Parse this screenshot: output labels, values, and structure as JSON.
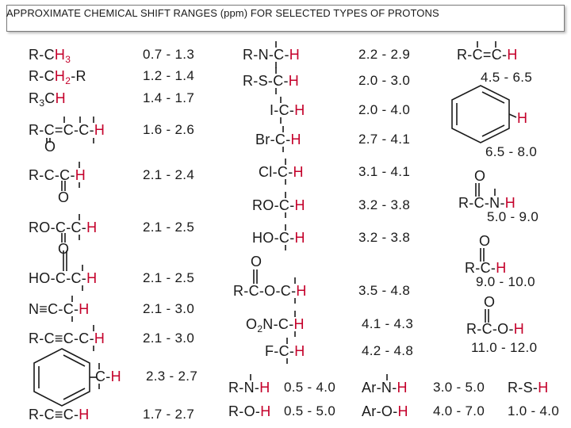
{
  "title": "APPROXIMATE CHEMICAL SHIFT RANGES (ppm) FOR SELECTED TYPES OF PROTONS",
  "colors": {
    "proton": "#c4002a",
    "text": "#1a1a1a",
    "frame": "#7a7a7a"
  },
  "col1": [
    {
      "pre": "R-C",
      "h": "H",
      "sub": "3",
      "post": "",
      "range": "0.7 - 1.3"
    },
    {
      "pre": "R-C",
      "h": "H",
      "sub": "2",
      "post": "-R",
      "range": "1.2 - 1.4"
    },
    {
      "pre": "R",
      "sub0": "3",
      "mid": "C",
      "h": "H",
      "range": "1.4 - 1.7"
    },
    {
      "pre": "R-C=C-C-",
      "h": "H",
      "o": "O",
      "range": "1.6 - 2.6"
    },
    {
      "pre": "R-C-C-",
      "h": "H",
      "o": "O",
      "range": "2.1 - 2.4"
    },
    {
      "pre": "RO-C-C-",
      "h": "H",
      "o": "O",
      "range": "2.1 - 2.5"
    },
    {
      "pre": "HO-C-C-",
      "h": "H",
      "range": "2.1 - 2.5"
    },
    {
      "pre": "N≡C-C-",
      "h": "H",
      "range": "2.1 - 3.0"
    },
    {
      "pre": "R-C≡C-C-",
      "h": "H",
      "range": "2.1 - 3.0"
    },
    {
      "pre": "C-",
      "h": "H",
      "range": "2.3 - 2.7"
    },
    {
      "pre": "R-C≡C-",
      "h": "H",
      "range": "1.7 - 2.7"
    }
  ],
  "col2": [
    {
      "pre": "R-N-C-",
      "h": "H",
      "range": "2.2 - 2.9"
    },
    {
      "pre": "R-S-C-",
      "h": "H",
      "range": "2.0 - 3.0"
    },
    {
      "pre": "I-C-",
      "h": "H",
      "range": "2.0 - 4.0"
    },
    {
      "pre": "Br-C-",
      "h": "H",
      "range": "2.7 - 4.1"
    },
    {
      "pre": "Cl-C-",
      "h": "H",
      "range": "3.1 - 4.1"
    },
    {
      "pre": "RO-C-",
      "h": "H",
      "range": "3.2 - 3.8"
    },
    {
      "pre": "HO-C-",
      "h": "H",
      "range": "3.2 - 3.8"
    },
    {
      "pre": "R-C-O-C-",
      "h": "H",
      "o": "O",
      "range": "3.5 - 4.8"
    },
    {
      "pre": "O",
      "sub": "2",
      "post": "N-C-",
      "h": "H",
      "range": "4.1 - 4.3"
    },
    {
      "pre": "F-C-",
      "h": "H",
      "range": "4.2 - 4.8"
    }
  ],
  "col3": [
    {
      "pre": "R-C=C-",
      "h": "H",
      "range": "4.5 - 6.5"
    },
    {
      "h": "H",
      "range": "6.5 - 8.0"
    },
    {
      "pre": "R-C-N-",
      "h": "H",
      "o": "O",
      "range": "5.0 - 9.0"
    },
    {
      "pre": "R-C-",
      "h": "H",
      "o": "O",
      "range": "9.0 - 10.0"
    },
    {
      "pre": "R-C-O-",
      "h": "H",
      "o": "O",
      "range": "11.0 - 12.0"
    }
  ],
  "bottom": [
    {
      "pre": "R-N-",
      "h": "H",
      "range": "0.5 - 4.0"
    },
    {
      "pre": "R-O-",
      "h": "H",
      "range": "0.5 - 5.0"
    },
    {
      "pre": "Ar-N-",
      "h": "H",
      "range": "3.0 - 5.0"
    },
    {
      "pre": "Ar-O-",
      "h": "H",
      "range": "4.0 - 7.0"
    },
    {
      "pre": "R-S-",
      "h": "H",
      "range": "1.0 - 4.0"
    }
  ]
}
